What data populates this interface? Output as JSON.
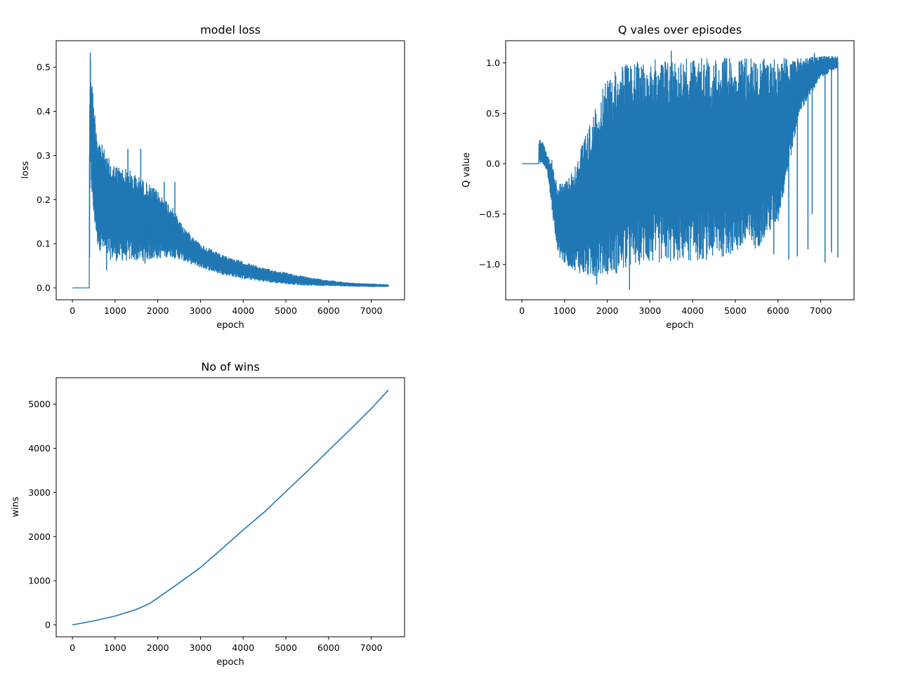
{
  "figure": {
    "background": "#ffffff",
    "line_color": "#1f77b4"
  },
  "chart_data": [
    {
      "id": "loss",
      "type": "line",
      "title": "model loss",
      "xlabel": "epoch",
      "ylabel": "loss",
      "xlim": [
        -380,
        7780
      ],
      "ylim": [
        -0.027,
        0.56
      ],
      "xticks": [
        0,
        1000,
        2000,
        3000,
        4000,
        5000,
        6000,
        7000
      ],
      "yticks": [
        0.0,
        0.1,
        0.2,
        0.3,
        0.4,
        0.5
      ],
      "ytick_labels": [
        "0.0",
        "0.1",
        "0.2",
        "0.3",
        "0.4",
        "0.5"
      ],
      "grid": false,
      "series": [
        {
          "name": "loss",
          "style": "noisy_band",
          "x": [
            0,
            395,
            400,
            420,
            500,
            600,
            800,
            1000,
            1300,
            1600,
            2000,
            2300,
            2600,
            3000,
            3500,
            4000,
            4500,
            5000,
            5500,
            6000,
            6500,
            7000,
            7400
          ],
          "low": [
            0,
            0,
            0,
            0.25,
            0.15,
            0.09,
            0.065,
            0.06,
            0.06,
            0.06,
            0.065,
            0.07,
            0.06,
            0.045,
            0.03,
            0.02,
            0.013,
            0.008,
            0.005,
            0.004,
            0.003,
            0.002,
            0.002
          ],
          "high": [
            0,
            0,
            0.45,
            0.53,
            0.42,
            0.35,
            0.3,
            0.28,
            0.27,
            0.25,
            0.22,
            0.19,
            0.14,
            0.1,
            0.075,
            0.06,
            0.045,
            0.035,
            0.025,
            0.018,
            0.012,
            0.01,
            0.008
          ],
          "peaks": [
            {
              "x": 420,
              "y": 0.533
            },
            {
              "x": 700,
              "y": 0.31
            },
            {
              "x": 1300,
              "y": 0.315
            },
            {
              "x": 1600,
              "y": 0.315
            },
            {
              "x": 2150,
              "y": 0.24
            },
            {
              "x": 2400,
              "y": 0.24
            },
            {
              "x": 1700,
              "y": 0.055
            },
            {
              "x": 800,
              "y": 0.04
            }
          ]
        }
      ]
    },
    {
      "id": "qvalues",
      "type": "line",
      "title": "Q vales over episodes",
      "xlabel": "epoch",
      "ylabel": "Q value",
      "xlim": [
        -380,
        7780
      ],
      "ylim": [
        -1.35,
        1.22
      ],
      "xticks": [
        0,
        1000,
        2000,
        3000,
        4000,
        5000,
        6000,
        7000
      ],
      "yticks": [
        -1.0,
        -0.5,
        0.0,
        0.5,
        1.0
      ],
      "ytick_labels": [
        "−1.0",
        "−0.5",
        "0.0",
        "0.5",
        "1.0"
      ],
      "grid": false,
      "series": [
        {
          "name": "Q value",
          "style": "noisy_band",
          "x": [
            0,
            395,
            400,
            500,
            600,
            700,
            800,
            900,
            1000,
            1200,
            1400,
            1600,
            1800,
            2000,
            2200,
            2500,
            2800,
            3000,
            3500,
            4000,
            4500,
            5000,
            5500,
            6000,
            6500,
            7000,
            7400
          ],
          "low": [
            0,
            0,
            0.0,
            0.0,
            -0.1,
            -0.45,
            -0.8,
            -0.95,
            -1.0,
            -1.05,
            -1.1,
            -1.15,
            -1.12,
            -1.1,
            -1.1,
            -1.05,
            -1.0,
            -1.0,
            -0.98,
            -0.97,
            -0.95,
            -0.9,
            -0.85,
            -0.6,
            0.5,
            0.85,
            0.95
          ],
          "high": [
            0,
            0,
            0.25,
            0.22,
            0.08,
            0.05,
            -0.15,
            -0.2,
            -0.15,
            -0.05,
            0.2,
            0.4,
            0.65,
            0.85,
            0.95,
            1.0,
            1.02,
            1.03,
            1.05,
            1.05,
            1.05,
            1.05,
            1.05,
            1.05,
            1.05,
            1.07,
            1.07
          ],
          "peaks": [
            {
              "x": 2520,
              "y": -1.25
            },
            {
              "x": 1750,
              "y": -1.2
            },
            {
              "x": 3500,
              "y": 1.12
            },
            {
              "x": 6850,
              "y": 1.1
            },
            {
              "x": 5900,
              "y": -0.9
            },
            {
              "x": 6250,
              "y": -0.95
            },
            {
              "x": 6450,
              "y": -0.92
            },
            {
              "x": 6700,
              "y": -0.85
            },
            {
              "x": 6800,
              "y": -0.5
            },
            {
              "x": 7100,
              "y": -0.98
            },
            {
              "x": 7250,
              "y": -0.88
            },
            {
              "x": 7400,
              "y": -0.93
            }
          ]
        }
      ]
    },
    {
      "id": "wins",
      "type": "line",
      "title": "No of wins",
      "xlabel": "epoch",
      "ylabel": "wins",
      "xlim": [
        -380,
        7780
      ],
      "ylim": [
        -270,
        5600
      ],
      "xticks": [
        0,
        1000,
        2000,
        3000,
        4000,
        5000,
        6000,
        7000
      ],
      "yticks": [
        0,
        1000,
        2000,
        3000,
        4000,
        5000
      ],
      "ytick_labels": [
        "0",
        "1000",
        "2000",
        "3000",
        "4000",
        "5000"
      ],
      "grid": false,
      "series": [
        {
          "name": "wins",
          "style": "line",
          "x": [
            0,
            500,
            1000,
            1500,
            1800,
            2000,
            2500,
            3000,
            3500,
            4000,
            4500,
            5000,
            5500,
            6000,
            6500,
            7000,
            7400
          ],
          "y": [
            0,
            90,
            200,
            350,
            480,
            610,
            950,
            1300,
            1720,
            2150,
            2560,
            3020,
            3480,
            3950,
            4420,
            4900,
            5320
          ]
        }
      ]
    }
  ]
}
